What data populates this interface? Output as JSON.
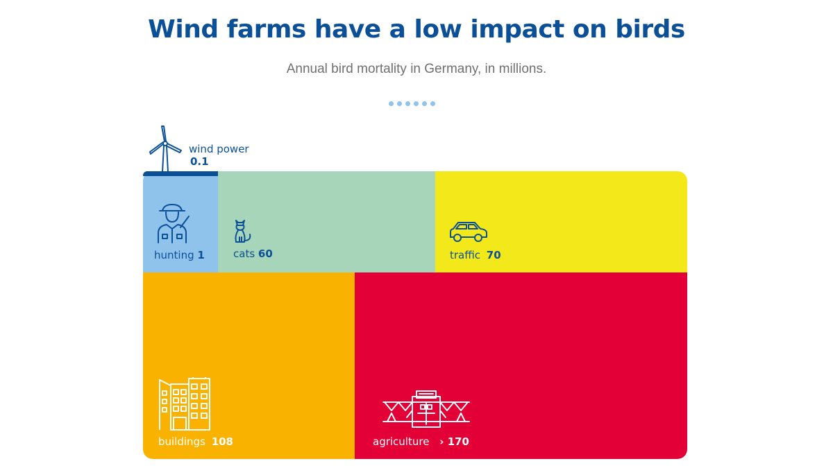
{
  "title": "Wind farms have a low impact on birds",
  "subtitle": "Annual bird mortality in Germany, in millions.",
  "colors": {
    "title": "#0b4f96",
    "hunting": "#8fc3ec",
    "cats": "#a7d5b9",
    "traffic": "#f2e81a",
    "buildings": "#f9b200",
    "agriculture": "#e20036",
    "wind": "#0b4f96",
    "dots": "#8fc3ec"
  },
  "chart_data": {
    "type": "treemap",
    "title": "Wind farms have a low impact on birds",
    "subtitle": "Annual bird mortality in Germany, in millions.",
    "items": [
      {
        "label": "wind power",
        "value_text": "0.1",
        "value": 0.1,
        "icon": "wind-turbine-icon"
      },
      {
        "label": "hunting",
        "value_text": "1",
        "value": 1,
        "icon": "hunter-icon"
      },
      {
        "label": "cats",
        "value_text": "60",
        "value": 60,
        "icon": "cat-icon"
      },
      {
        "label": "traffic",
        "value_text": "70",
        "value": 70,
        "icon": "car-icon"
      },
      {
        "label": "buildings",
        "value_text": "108",
        "value": 108,
        "icon": "buildings-icon"
      },
      {
        "label": "agriculture",
        "value_text": "› 170",
        "value": 170,
        "icon": "tractor-sprayer-icon"
      }
    ]
  }
}
